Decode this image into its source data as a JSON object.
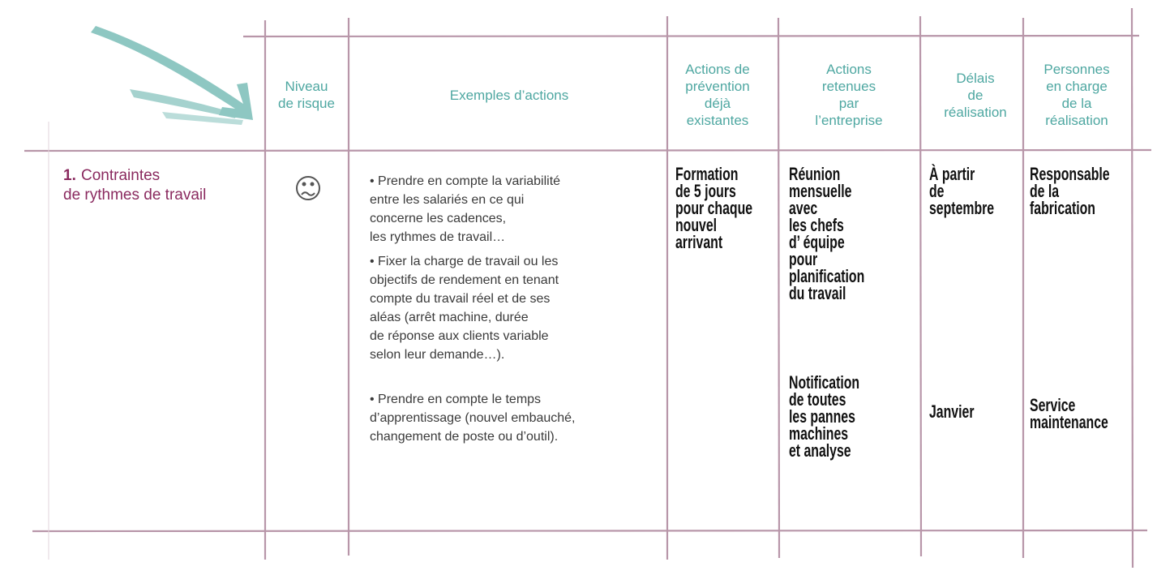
{
  "header": {
    "columns": [
      {
        "lines": [
          "Niveau",
          "de risque"
        ]
      },
      {
        "lines": [
          "Exemples d’actions"
        ]
      },
      {
        "lines": [
          "Actions de",
          "prévention",
          "déjà",
          "existantes"
        ]
      },
      {
        "lines": [
          "Actions",
          "retenues",
          "par",
          "l’entreprise"
        ]
      },
      {
        "lines": [
          "Délais",
          "de",
          "réalisation"
        ]
      },
      {
        "lines": [
          "Personnes",
          "en charge",
          "de la",
          "réalisation"
        ]
      }
    ]
  },
  "row": {
    "number": "1.",
    "title_lines": [
      "Contraintes",
      "de rythmes de travail"
    ],
    "examples": [
      [
        "• Prendre en compte la variabilité",
        "entre les salariés en ce qui",
        "concerne les cadences,",
        "les rythmes de travail…"
      ],
      [
        "• Fixer la charge de travail ou les",
        "objectifs de rendement en tenant",
        "compte du travail réel et de ses",
        "aléas (arrêt machine, durée",
        "de réponse aux clients variable",
        "selon leur demande…)."
      ],
      [
        "• Prendre en compte le temps",
        "d’apprentissage (nouvel embauché,",
        "changement de poste ou d’outil)."
      ]
    ],
    "prevention": [
      [
        "Formation",
        "de 5 jours",
        "pour chaque",
        "nouvel",
        "arrivant"
      ]
    ],
    "retenues": [
      [
        "Réunion",
        "mensuelle",
        "avec",
        "les chefs",
        "d’ équipe",
        "pour",
        "planification",
        "du travail"
      ],
      [
        "Notification",
        "de toutes",
        "les pannes",
        "machines",
        "et analyse"
      ]
    ],
    "delais": [
      [
        "À partir",
        "de",
        "septembre"
      ],
      [
        "Janvier"
      ]
    ],
    "personnes": [
      [
        "Responsable",
        "de la",
        "fabrication"
      ],
      [
        "Service",
        "maintenance"
      ]
    ]
  }
}
